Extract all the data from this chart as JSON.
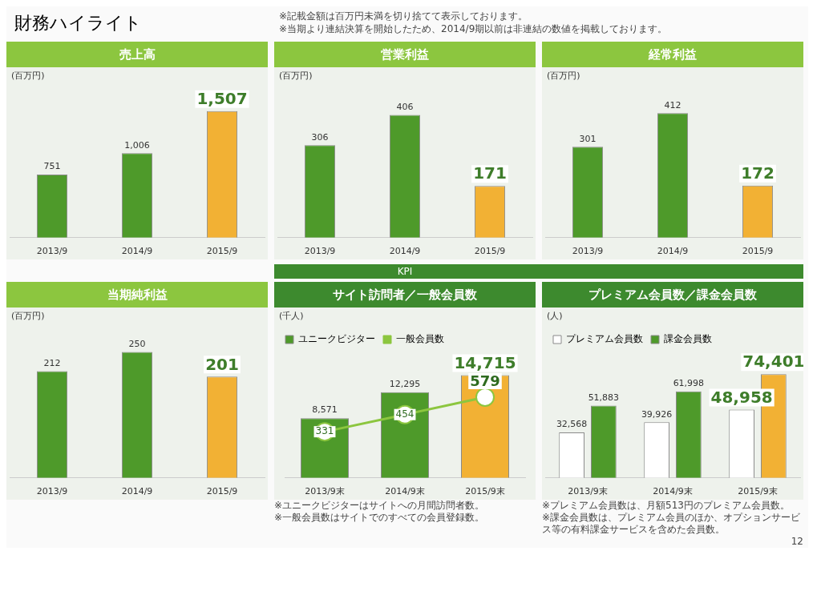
{
  "chart_data": [
    {
      "type": "bar",
      "title": "売上高",
      "ylabel": "(百万円)",
      "categories": [
        "2013/9",
        "2014/9",
        "2015/9"
      ],
      "values": [
        751,
        1006,
        1507
      ],
      "value_labels": [
        "751",
        "1,006",
        "1,507"
      ],
      "colors": [
        "#4e9a2a",
        "#4e9a2a",
        "#f2b134"
      ],
      "annotations": [
        "財務ハイライト",
        "※記載金額は百万円未満を切り捨てて表示しております。",
        "※当期より連結決算を開始したため、2014/9期以前は非連結の数値を掲載しております。"
      ]
    },
    {
      "type": "bar",
      "title": "営業利益",
      "ylabel": "(百万円)",
      "categories": [
        "2013/9",
        "2014/9",
        "2015/9"
      ],
      "values": [
        306,
        406,
        171
      ],
      "value_labels": [
        "306",
        "406",
        "171"
      ],
      "colors": [
        "#4e9a2a",
        "#4e9a2a",
        "#f2b134"
      ]
    },
    {
      "type": "bar",
      "title": "経常利益",
      "ylabel": "(百万円)",
      "categories": [
        "2013/9",
        "2014/9",
        "2015/9"
      ],
      "values": [
        301,
        412,
        172
      ],
      "value_labels": [
        "301",
        "412",
        "172"
      ],
      "colors": [
        "#4e9a2a",
        "#4e9a2a",
        "#f2b134"
      ]
    },
    {
      "type": "bar",
      "title": "当期純利益",
      "ylabel": "(百万円)",
      "categories": [
        "2013/9",
        "2014/9",
        "2015/9"
      ],
      "values": [
        212,
        250,
        201
      ],
      "value_labels": [
        "212",
        "250",
        "201"
      ],
      "colors": [
        "#4e9a2a",
        "#4e9a2a",
        "#f2b134"
      ]
    },
    {
      "type": "bar",
      "title": "サイト訪問者／一般会員数",
      "subtitle": "KPI",
      "ylabel": "(千人)",
      "categories": [
        "2013/9末",
        "2014/9末",
        "2015/9末"
      ],
      "legend": "top left",
      "series": [
        {
          "name": "ユニークビジター",
          "colors": [
            "#4e9a2a",
            "#4e9a2a",
            "#f2b134"
          ],
          "values": [
            8571,
            12295,
            14715
          ],
          "value_labels": [
            "8,571",
            "12,295",
            "14,715"
          ]
        },
        {
          "name": "一般会員数",
          "type": "line",
          "axis": "y2",
          "color": "#8cc63f",
          "marker": "circle",
          "values": [
            331,
            454,
            579
          ],
          "value_labels": [
            "331",
            "454",
            "579"
          ]
        }
      ],
      "annotations": [
        "※ユニークビジターはサイトへの月間訪問者数。",
        "※一般会員数はサイトでのすべての会員登録数。"
      ]
    },
    {
      "type": "bar",
      "title": "プレミアム会員数／課金会員数",
      "ylabel": "(人)",
      "categories": [
        "2013/9末",
        "2014/9末",
        "2015/9末"
      ],
      "legend": "top left",
      "series": [
        {
          "name": "プレミアム会員数",
          "colors": [
            "#ffffff",
            "#ffffff",
            "#ffffff"
          ],
          "values": [
            32568,
            39926,
            48958
          ],
          "value_labels": [
            "32,568",
            "39,926",
            "48,958"
          ]
        },
        {
          "name": "課金会員数",
          "colors": [
            "#4e9a2a",
            "#4e9a2a",
            "#f2b134"
          ],
          "values": [
            51883,
            61998,
            74401
          ],
          "value_labels": [
            "51,883",
            "61,998",
            "74,401"
          ]
        }
      ],
      "annotations": [
        "※プレミアム会員数は、月額513円のプレミアム会員数。",
        "※課金会員数は、プレミアム会員のほか、オプションサービス等の有料課金サービスを含めた会員数。",
        "12"
      ]
    }
  ]
}
